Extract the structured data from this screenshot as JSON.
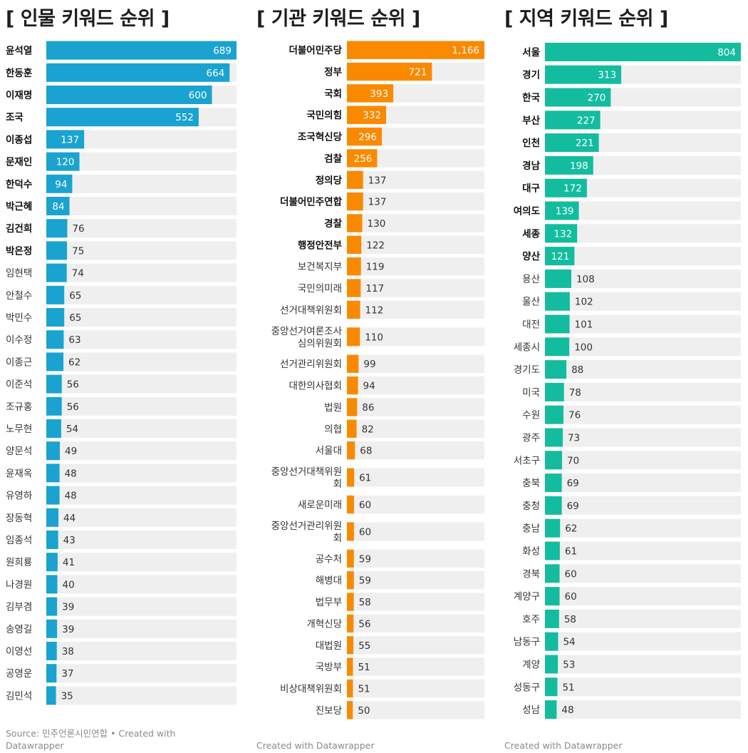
{
  "colors": {
    "people": "#1aa3d0",
    "orgs": "#f98a00",
    "regions": "#13bc9f",
    "track": "#efefef"
  },
  "chart_data": [
    {
      "type": "bar",
      "title": "[ 인물 키워드 순위 ]",
      "orientation": "horizontal",
      "categories": [
        "윤석열",
        "한동훈",
        "이재명",
        "조국",
        "이종섭",
        "문재인",
        "한덕수",
        "박근혜",
        "김건희",
        "박은정",
        "임현택",
        "안철수",
        "박민수",
        "이수정",
        "이종근",
        "이준석",
        "조규홍",
        "노무현",
        "양문석",
        "윤재옥",
        "유영하",
        "장동혁",
        "임종석",
        "원희룡",
        "나경원",
        "김부겸",
        "송영길",
        "이영선",
        "공영운",
        "김민석"
      ],
      "values": [
        689,
        664,
        600,
        552,
        137,
        120,
        94,
        84,
        76,
        75,
        74,
        65,
        65,
        63,
        62,
        56,
        56,
        54,
        49,
        48,
        48,
        44,
        43,
        41,
        40,
        39,
        39,
        38,
        37,
        35
      ],
      "value_labels": [
        "689",
        "664",
        "600",
        "552",
        "137",
        "120",
        "94",
        "84",
        "76",
        "75",
        "74",
        "65",
        "65",
        "63",
        "62",
        "56",
        "56",
        "54",
        "49",
        "48",
        "48",
        "44",
        "43",
        "41",
        "40",
        "39",
        "39",
        "38",
        "37",
        "35"
      ],
      "bold_labels": 10,
      "xlim": [
        0,
        689
      ],
      "footer": "Source: 민주언론시민연합 • Created with Datawrapper"
    },
    {
      "type": "bar",
      "title": "[ 기관 키워드 순위 ]",
      "orientation": "horizontal",
      "categories": [
        "더불어민주당",
        "정부",
        "국회",
        "국민의힘",
        "조국혁신당",
        "검찰",
        "정의당",
        "더불어민주연합",
        "경찰",
        "행정안전부",
        "보건복지부",
        "국민의미래",
        "선거대책위원회",
        "중앙선거여론조사\n심의위원회",
        "선거관리위원회",
        "대한의사협회",
        "법원",
        "의협",
        "서울대",
        "중앙선거대책위원\n회",
        "새로운미래",
        "중앙선거관리위원\n회",
        "공수처",
        "해병대",
        "법무부",
        "개혁신당",
        "대법원",
        "국방부",
        "비상대책위원회",
        "진보당"
      ],
      "values": [
        1166,
        721,
        393,
        332,
        296,
        256,
        137,
        137,
        130,
        122,
        119,
        117,
        112,
        110,
        99,
        94,
        86,
        82,
        68,
        61,
        60,
        60,
        59,
        59,
        58,
        56,
        55,
        51,
        51,
        50
      ],
      "value_labels": [
        "1,166",
        "721",
        "393",
        "332",
        "296",
        "256",
        "137",
        "137",
        "130",
        "122",
        "119",
        "117",
        "112",
        "110",
        "99",
        "94",
        "86",
        "82",
        "68",
        "61",
        "60",
        "60",
        "59",
        "59",
        "58",
        "56",
        "55",
        "51",
        "51",
        "50"
      ],
      "bold_labels": 10,
      "xlim": [
        0,
        1166
      ],
      "footer": "Created with Datawrapper"
    },
    {
      "type": "bar",
      "title": "[ 지역 키워드 순위 ]",
      "orientation": "horizontal",
      "categories": [
        "서울",
        "경기",
        "한국",
        "부산",
        "인천",
        "경남",
        "대구",
        "여의도",
        "세종",
        "양산",
        "용산",
        "울산",
        "대전",
        "세종시",
        "경기도",
        "미국",
        "수원",
        "광주",
        "서초구",
        "충북",
        "충청",
        "충남",
        "화성",
        "경북",
        "계양구",
        "호주",
        "남동구",
        "계양",
        "성동구",
        "성남"
      ],
      "values": [
        804,
        313,
        270,
        227,
        221,
        198,
        172,
        139,
        132,
        121,
        108,
        102,
        101,
        100,
        88,
        78,
        76,
        73,
        70,
        69,
        69,
        62,
        61,
        60,
        60,
        58,
        54,
        53,
        51,
        48
      ],
      "value_labels": [
        "804",
        "313",
        "270",
        "227",
        "221",
        "198",
        "172",
        "139",
        "132",
        "121",
        "108",
        "102",
        "101",
        "100",
        "88",
        "78",
        "76",
        "73",
        "70",
        "69",
        "69",
        "62",
        "61",
        "60",
        "60",
        "58",
        "54",
        "53",
        "51",
        "48"
      ],
      "bold_labels": 10,
      "xlim": [
        0,
        804
      ],
      "footer": "Created with Datawrapper"
    }
  ]
}
